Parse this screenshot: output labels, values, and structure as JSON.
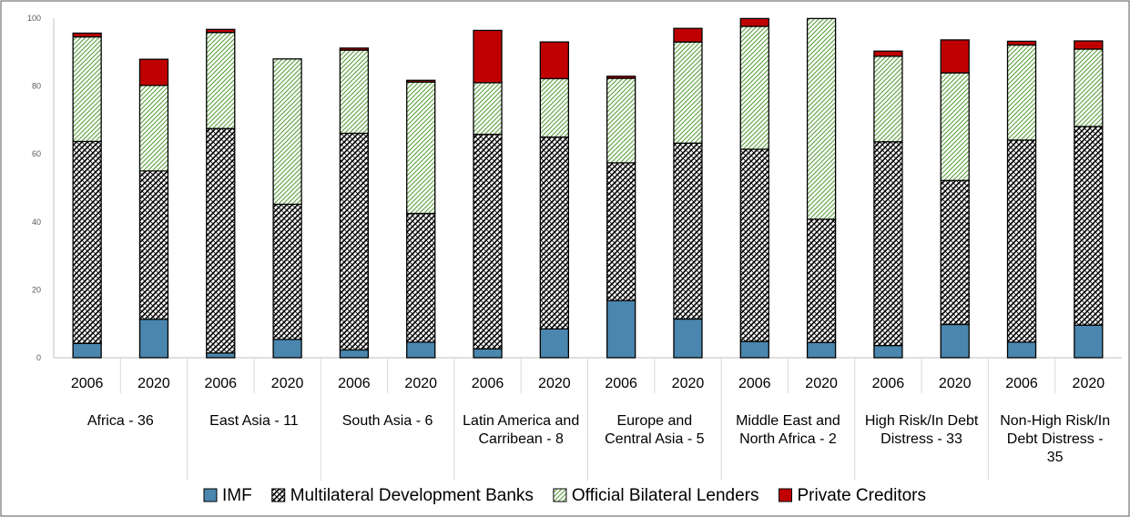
{
  "chart_data": {
    "type": "bar",
    "stacked": true,
    "ylim": [
      0,
      100
    ],
    "yticks": [
      0,
      20,
      40,
      60,
      80,
      100
    ],
    "grid": false,
    "legend_position": "bottom",
    "series": [
      {
        "name": "IMF",
        "pattern": "solid",
        "color": "#4a86ad"
      },
      {
        "name": "Multilateral Development Banks",
        "pattern": "crosshatch",
        "color": "#000000"
      },
      {
        "name": "Official Bilateral Lenders",
        "pattern": "diagonal",
        "color": "#5a9e3c"
      },
      {
        "name": "Private Creditors",
        "pattern": "solid",
        "color": "#c00000"
      }
    ],
    "groups": [
      {
        "label": "Africa - 36",
        "bars": [
          {
            "year": "2006",
            "values": [
              4.2,
              59.5,
              30.8,
              1.1
            ]
          },
          {
            "year": "2020",
            "values": [
              11.3,
              43.7,
              25.2,
              7.7
            ]
          }
        ]
      },
      {
        "label": "East Asia - 11",
        "bars": [
          {
            "year": "2006",
            "values": [
              1.4,
              66.1,
              28.3,
              0.9
            ]
          },
          {
            "year": "2020",
            "values": [
              5.4,
              39.8,
              42.8,
              0
            ]
          }
        ]
      },
      {
        "label": "South Asia - 6",
        "bars": [
          {
            "year": "2006",
            "values": [
              2.3,
              63.8,
              24.5,
              0.6
            ]
          },
          {
            "year": "2020",
            "values": [
              4.6,
              37.9,
              38.7,
              0.5
            ]
          }
        ]
      },
      {
        "label": "Latin America and Carribean - 8",
        "bars": [
          {
            "year": "2006",
            "values": [
              2.6,
              63.2,
              15.2,
              15.4
            ]
          },
          {
            "year": "2020",
            "values": [
              8.5,
              56.5,
              17.2,
              10.8
            ]
          }
        ]
      },
      {
        "label": "Europe and Central Asia - 5",
        "bars": [
          {
            "year": "2006",
            "values": [
              16.8,
              40.6,
              24.9,
              0.6
            ]
          },
          {
            "year": "2020",
            "values": [
              11.4,
              51.8,
              29.8,
              4.0
            ]
          }
        ]
      },
      {
        "label": "Middle East and North Africa - 2",
        "bars": [
          {
            "year": "2006",
            "values": [
              4.8,
              56.6,
              36.2,
              2.3
            ]
          },
          {
            "year": "2020",
            "values": [
              4.5,
              36.3,
              59.1,
              0
            ]
          }
        ]
      },
      {
        "label": "High Risk/In Debt Distress - 33",
        "bars": [
          {
            "year": "2006",
            "values": [
              3.6,
              60.0,
              25.2,
              1.5
            ]
          },
          {
            "year": "2020",
            "values": [
              9.8,
              42.4,
              31.7,
              9.7
            ]
          }
        ]
      },
      {
        "label": "Non-High Risk/In Debt Distress - 35",
        "bars": [
          {
            "year": "2006",
            "values": [
              4.6,
              59.5,
              28.0,
              1.1
            ]
          },
          {
            "year": "2020",
            "values": [
              9.6,
              58.5,
              22.8,
              2.4
            ]
          }
        ]
      }
    ]
  }
}
